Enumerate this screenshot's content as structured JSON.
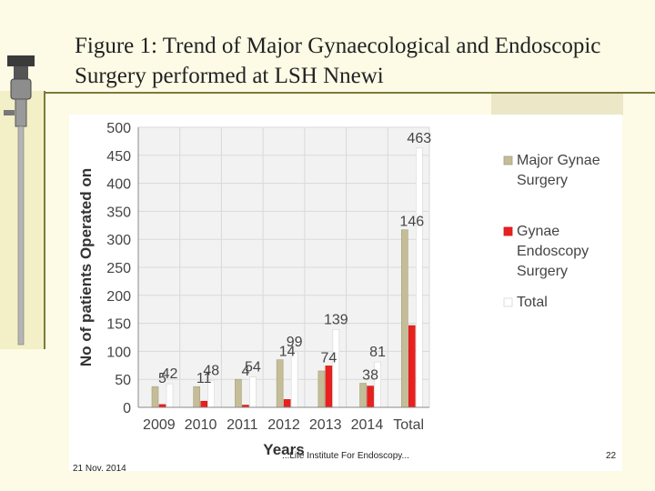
{
  "title": "Figure 1: Trend of Major Gynaecological and Endoscopic Surgery performed at LSH Nnewi",
  "footer": {
    "date": "21 Nov. 2014",
    "center": "...Life Institute For Endoscopy...",
    "page": "22"
  },
  "colors": {
    "major": "#c4bd97",
    "endoscopy": "#e8211f",
    "total": "#ffffff",
    "grid": "#d9d9d9"
  },
  "chart_data": {
    "type": "bar",
    "categories": [
      "2009",
      "2010",
      "2011",
      "2012",
      "2013",
      "2014",
      "Total"
    ],
    "series": [
      {
        "name": "Major Gynae Surgery",
        "values": [
          37,
          37,
          50,
          85,
          65,
          43,
          317
        ]
      },
      {
        "name": "Gynae Endoscopy Surgery",
        "values": [
          5,
          11,
          4,
          14,
          74,
          38,
          146
        ]
      },
      {
        "name": "Total",
        "values": [
          42,
          48,
          54,
          99,
          139,
          81,
          463
        ]
      }
    ],
    "data_labels": {
      "Gynae Endoscopy Surgery": [
        5,
        11,
        4,
        14,
        74,
        38,
        146
      ],
      "Total": [
        42,
        48,
        54,
        99,
        139,
        81,
        463
      ]
    },
    "xlabel": "Years",
    "ylabel": "No of patients Operated on",
    "ylim": [
      0,
      500
    ],
    "yticks": [
      0,
      50,
      100,
      150,
      200,
      250,
      300,
      350,
      400,
      450,
      500
    ],
    "grid": true,
    "legend_position": "right"
  }
}
